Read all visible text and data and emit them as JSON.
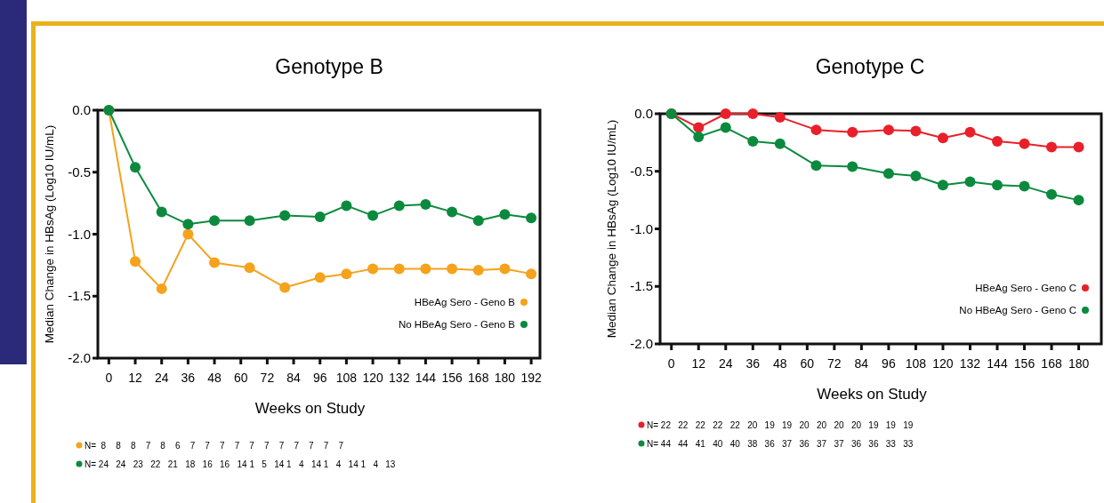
{
  "chart_data": [
    {
      "type": "line",
      "title": "Genotype B",
      "xlabel": "Weeks on Study",
      "ylabel": "Median Change in HBsAg (Log10 IU/mL)",
      "x": [
        0,
        12,
        24,
        36,
        48,
        64,
        80,
        96,
        108,
        120,
        132,
        144,
        156,
        168,
        180,
        192
      ],
      "series": [
        {
          "name": "HBeAg Sero - Geno B",
          "color": "#f5a21c",
          "values": [
            0,
            -1.22,
            -1.44,
            -1.0,
            -1.23,
            -1.27,
            -1.43,
            -1.35,
            -1.32,
            -1.28,
            -1.28,
            -1.28,
            -1.28,
            -1.29,
            -1.28,
            -1.32
          ]
        },
        {
          "name": "No HBeAg Sero - Geno B",
          "color": "#0b8a3e",
          "values": [
            0,
            -0.46,
            -0.82,
            -0.92,
            -0.89,
            -0.89,
            -0.85,
            -0.86,
            -0.77,
            -0.85,
            -0.77,
            -0.76,
            -0.82,
            -0.89,
            -0.84,
            -0.87
          ]
        }
      ],
      "xlim": [
        -5,
        196
      ],
      "ylim": [
        -2,
        0
      ],
      "xticks": [
        0,
        12,
        24,
        36,
        48,
        60,
        72,
        84,
        96,
        108,
        120,
        132,
        144,
        156,
        168,
        180,
        192
      ],
      "yticks": [
        {
          "value": -2,
          "label": "-2.0"
        },
        {
          "value": -1.5,
          "label": "-1.5"
        },
        {
          "value": -1,
          "label": "-1.0"
        },
        {
          "value": -0.5,
          "label": "-0.5"
        },
        {
          "value": 0,
          "label": "0.0"
        }
      ],
      "legend": "bottom right",
      "marker": "circle",
      "annotations": [
        "N=  8    8    8    7    8    6    7    7    7    7    7    7    7    7    7    7    7",
        "N= 24   24   23   22   21   18   16   16   14 1   5   14 1   4   14 1   4   14 1   4   13"
      ]
    },
    {
      "type": "line",
      "title": "Genotype C",
      "xlabel": "Weeks on Study",
      "ylabel": "Median Change in HBsAg (Log10 IU/mL)",
      "x": [
        0,
        12,
        24,
        36,
        48,
        64,
        80,
        96,
        108,
        120,
        132,
        144,
        156,
        168,
        180
      ],
      "series": [
        {
          "name": "HBeAg Sero - Geno C",
          "color": "#e8202a",
          "values": [
            0,
            -0.12,
            0,
            0,
            -0.03,
            -0.14,
            -0.16,
            -0.14,
            -0.15,
            -0.21,
            -0.16,
            -0.24,
            -0.26,
            -0.29,
            -0.29
          ]
        },
        {
          "name": "No HBeAg Sero - Geno C",
          "color": "#0b8a3e",
          "values": [
            0,
            -0.2,
            -0.12,
            -0.24,
            -0.26,
            -0.45,
            -0.46,
            -0.52,
            -0.54,
            -0.62,
            -0.59,
            -0.62,
            -0.63,
            -0.7,
            -0.75
          ]
        }
      ],
      "xlim": [
        -5,
        190
      ],
      "ylim": [
        -2,
        0
      ],
      "xticks": [
        0,
        12,
        24,
        36,
        48,
        60,
        72,
        84,
        96,
        108,
        120,
        132,
        144,
        156,
        168,
        180
      ],
      "yticks": [
        {
          "value": -2,
          "label": "-2.0"
        },
        {
          "value": -1.5,
          "label": "-1.5"
        },
        {
          "value": -1,
          "label": "-1.0"
        },
        {
          "value": -0.5,
          "label": "-0.5"
        },
        {
          "value": 0,
          "label": "0.0"
        }
      ],
      "legend": "bottom right",
      "marker": "circle",
      "annotations": [
        "N= 22   22   22   22   22   20   19   19   20   20   20   20   19   19   19",
        "N= 44   44   41   40   40   38   36   37   36   37   37   36   36   33   33"
      ]
    }
  ]
}
